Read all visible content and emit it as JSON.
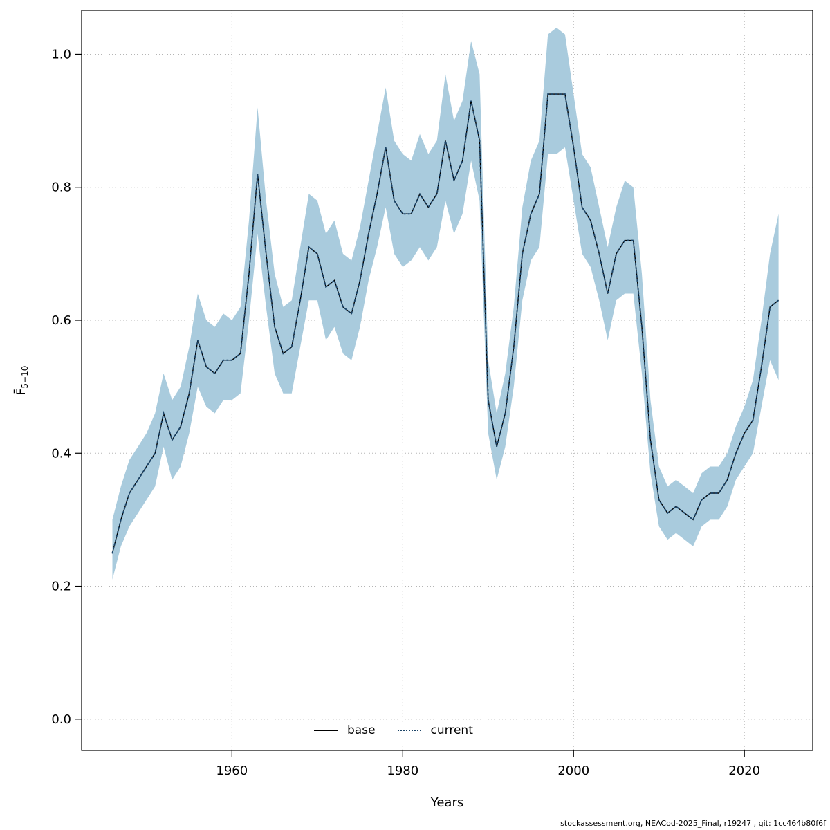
{
  "chart_data": {
    "type": "line",
    "title": "",
    "xlabel": "Years",
    "ylabel_main": "F̄",
    "ylabel_sub": "5−10",
    "x_ticks": [
      1960,
      1980,
      2000,
      2020
    ],
    "y_ticks": [
      0.0,
      0.2,
      0.4,
      0.6,
      0.8,
      1.0
    ],
    "xlim": [
      1942.4,
      2028.0
    ],
    "ylim": [
      -0.047,
      1.066
    ],
    "grid": true,
    "legend": {
      "base_label": "base",
      "current_label": "current",
      "position": "bottom-center"
    },
    "colors": {
      "band": "#a9cbdd",
      "base": "#000000",
      "current": "#1d4568",
      "grid": "#b5b5b5"
    },
    "years": [
      1946,
      1947,
      1948,
      1949,
      1950,
      1951,
      1952,
      1953,
      1954,
      1955,
      1956,
      1957,
      1958,
      1959,
      1960,
      1961,
      1962,
      1963,
      1964,
      1965,
      1966,
      1967,
      1968,
      1969,
      1970,
      1971,
      1972,
      1973,
      1974,
      1975,
      1976,
      1977,
      1978,
      1979,
      1980,
      1981,
      1982,
      1983,
      1984,
      1985,
      1986,
      1987,
      1988,
      1989,
      1990,
      1991,
      1992,
      1993,
      1994,
      1995,
      1996,
      1997,
      1998,
      1999,
      2000,
      2001,
      2002,
      2003,
      2004,
      2005,
      2006,
      2007,
      2008,
      2009,
      2010,
      2011,
      2012,
      2013,
      2014,
      2015,
      2016,
      2017,
      2018,
      2019,
      2020,
      2021,
      2022,
      2023,
      2024
    ],
    "series": [
      {
        "name": "base",
        "values": [
          0.25,
          0.3,
          0.34,
          0.36,
          0.38,
          0.4,
          0.46,
          0.42,
          0.44,
          0.49,
          0.57,
          0.53,
          0.52,
          0.54,
          0.54,
          0.55,
          0.67,
          0.82,
          0.7,
          0.59,
          0.55,
          0.56,
          0.63,
          0.71,
          0.7,
          0.65,
          0.66,
          0.62,
          0.61,
          0.66,
          0.73,
          0.79,
          0.86,
          0.78,
          0.76,
          0.76,
          0.79,
          0.77,
          0.79,
          0.87,
          0.81,
          0.84,
          0.93,
          0.87,
          0.48,
          0.41,
          0.46,
          0.56,
          0.7,
          0.76,
          0.79,
          0.94,
          0.94,
          0.94,
          0.86,
          0.77,
          0.75,
          0.7,
          0.64,
          0.7,
          0.72,
          0.72,
          0.59,
          0.42,
          0.33,
          0.31,
          0.32,
          0.31,
          0.3,
          0.33,
          0.34,
          0.34,
          0.36,
          0.4,
          0.43,
          0.45,
          0.53,
          0.62,
          0.63
        ]
      },
      {
        "name": "current",
        "values": [
          0.25,
          0.3,
          0.34,
          0.36,
          0.38,
          0.4,
          0.46,
          0.42,
          0.44,
          0.49,
          0.57,
          0.53,
          0.52,
          0.54,
          0.54,
          0.55,
          0.67,
          0.82,
          0.7,
          0.59,
          0.55,
          0.56,
          0.63,
          0.71,
          0.7,
          0.65,
          0.66,
          0.62,
          0.61,
          0.66,
          0.73,
          0.79,
          0.86,
          0.78,
          0.76,
          0.76,
          0.79,
          0.77,
          0.79,
          0.87,
          0.81,
          0.84,
          0.93,
          0.87,
          0.48,
          0.41,
          0.46,
          0.56,
          0.7,
          0.76,
          0.79,
          0.94,
          0.94,
          0.94,
          0.86,
          0.77,
          0.75,
          0.7,
          0.64,
          0.7,
          0.72,
          0.72,
          0.59,
          0.42,
          0.33,
          0.31,
          0.32,
          0.31,
          0.3,
          0.33,
          0.34,
          0.34,
          0.36,
          0.4,
          0.43,
          0.45,
          0.53,
          0.62,
          0.63
        ]
      }
    ],
    "band": {
      "lower": [
        0.21,
        0.26,
        0.29,
        0.31,
        0.33,
        0.35,
        0.41,
        0.36,
        0.38,
        0.43,
        0.5,
        0.47,
        0.46,
        0.48,
        0.48,
        0.49,
        0.6,
        0.73,
        0.62,
        0.52,
        0.49,
        0.49,
        0.56,
        0.63,
        0.63,
        0.57,
        0.59,
        0.55,
        0.54,
        0.59,
        0.66,
        0.71,
        0.77,
        0.7,
        0.68,
        0.69,
        0.71,
        0.69,
        0.71,
        0.78,
        0.73,
        0.76,
        0.84,
        0.78,
        0.43,
        0.36,
        0.41,
        0.5,
        0.63,
        0.69,
        0.71,
        0.85,
        0.85,
        0.86,
        0.78,
        0.7,
        0.68,
        0.63,
        0.57,
        0.63,
        0.64,
        0.64,
        0.52,
        0.37,
        0.29,
        0.27,
        0.28,
        0.27,
        0.26,
        0.29,
        0.3,
        0.3,
        0.32,
        0.36,
        0.38,
        0.4,
        0.47,
        0.54,
        0.51
      ],
      "upper": [
        0.3,
        0.35,
        0.39,
        0.41,
        0.43,
        0.46,
        0.52,
        0.48,
        0.5,
        0.56,
        0.64,
        0.6,
        0.59,
        0.61,
        0.6,
        0.62,
        0.75,
        0.92,
        0.78,
        0.67,
        0.62,
        0.63,
        0.71,
        0.79,
        0.78,
        0.73,
        0.75,
        0.7,
        0.69,
        0.74,
        0.81,
        0.88,
        0.95,
        0.87,
        0.85,
        0.84,
        0.88,
        0.85,
        0.87,
        0.97,
        0.9,
        0.93,
        1.02,
        0.97,
        0.54,
        0.46,
        0.52,
        0.62,
        0.77,
        0.84,
        0.87,
        1.03,
        1.04,
        1.03,
        0.94,
        0.85,
        0.83,
        0.77,
        0.71,
        0.77,
        0.81,
        0.8,
        0.67,
        0.48,
        0.38,
        0.35,
        0.36,
        0.35,
        0.34,
        0.37,
        0.38,
        0.38,
        0.4,
        0.44,
        0.47,
        0.51,
        0.6,
        0.7,
        0.76
      ]
    }
  },
  "footer": {
    "text": "stockassessment.org, NEACod-2025_Final, r19247 , git: 1cc464b80f6f"
  }
}
